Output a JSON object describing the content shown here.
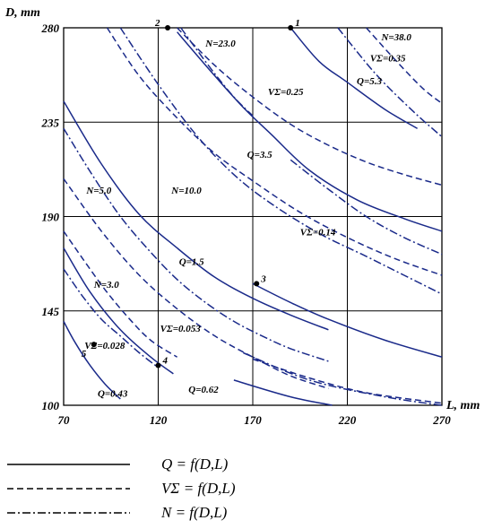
{
  "chart_data": {
    "type": "line",
    "xlabel": "L, mm",
    "ylabel": "D, mm",
    "xlim": [
      70,
      270
    ],
    "ylim": [
      100,
      280
    ],
    "xticks": [
      "70",
      "120",
      "170",
      "220",
      "270"
    ],
    "yticks": [
      "100",
      "145",
      "190",
      "235",
      "280"
    ],
    "grid": true,
    "curve_color": "#1a2a8a",
    "series": [
      {
        "name": "Q=0.43",
        "style": "solid",
        "points": [
          [
            70,
            140
          ],
          [
            76,
            130
          ],
          [
            84,
            119
          ],
          [
            92,
            110
          ],
          [
            100,
            103
          ]
        ]
      },
      {
        "name": "Q=0.62",
        "style": "solid",
        "points": [
          [
            70,
            175
          ],
          [
            84,
            154
          ],
          [
            100,
            136
          ],
          [
            116,
            123
          ],
          [
            128,
            115
          ]
        ]
      },
      {
        "name": "Q=1.5",
        "style": "solid",
        "points": [
          [
            70,
            245
          ],
          [
            90,
            215
          ],
          [
            110,
            191
          ],
          [
            130,
            175
          ],
          [
            150,
            161
          ],
          [
            170,
            151
          ],
          [
            190,
            143
          ],
          [
            210,
            136
          ]
        ]
      },
      {
        "name": "Q=1.5b",
        "style": "solid",
        "points": [
          [
            160,
            112
          ],
          [
            190,
            104
          ],
          [
            212,
            100
          ]
        ]
      },
      {
        "name": "Q=3.5",
        "style": "solid",
        "points": [
          [
            170,
            158
          ],
          [
            190,
            149
          ],
          [
            210,
            141
          ],
          [
            240,
            131
          ],
          [
            270,
            123
          ]
        ]
      },
      {
        "name": "Q=3.5b",
        "style": "solid",
        "points": [
          [
            130,
            278
          ],
          [
            150,
            257
          ],
          [
            165,
            242
          ],
          [
            180,
            229
          ],
          [
            200,
            212
          ],
          [
            225,
            198
          ],
          [
            250,
            189
          ],
          [
            270,
            183
          ]
        ]
      },
      {
        "name": "Q=5.3",
        "style": "solid",
        "points": [
          [
            190,
            280
          ],
          [
            205,
            264
          ],
          [
            220,
            254
          ],
          [
            240,
            241
          ],
          [
            257,
            232
          ]
        ]
      },
      {
        "name": "VΣ=0.028",
        "style": "dashed",
        "points": [
          [
            70,
            183
          ],
          [
            80,
            170
          ],
          [
            92,
            155
          ],
          [
            104,
            142
          ],
          [
            116,
            131
          ],
          [
            130,
            123
          ]
        ]
      },
      {
        "name": "VΣ=0.053",
        "style": "dashed",
        "points": [
          [
            70,
            208
          ],
          [
            90,
            183
          ],
          [
            110,
            162
          ],
          [
            130,
            146
          ],
          [
            150,
            133
          ],
          [
            170,
            123
          ],
          [
            190,
            114
          ],
          [
            210,
            108
          ]
        ]
      },
      {
        "name": "VΣ=0.14",
        "style": "dashed",
        "points": [
          [
            93,
            280
          ],
          [
            110,
            257
          ],
          [
            130,
            237
          ],
          [
            150,
            220
          ],
          [
            170,
            207
          ],
          [
            195,
            192
          ],
          [
            220,
            180
          ],
          [
            245,
            170
          ],
          [
            270,
            162
          ]
        ]
      },
      {
        "name": "VΣ=0.25",
        "style": "dashed",
        "points": [
          [
            130,
            280
          ],
          [
            150,
            262
          ],
          [
            170,
            247
          ],
          [
            190,
            234
          ],
          [
            210,
            224
          ],
          [
            230,
            216
          ],
          [
            250,
            210
          ],
          [
            270,
            205
          ]
        ]
      },
      {
        "name": "VΣ=0.35",
        "style": "dashed",
        "points": [
          [
            230,
            280
          ],
          [
            245,
            265
          ],
          [
            260,
            251
          ],
          [
            270,
            244
          ]
        ]
      },
      {
        "name": "VΣ=0.053b",
        "style": "dashed",
        "points": [
          [
            170,
            122
          ],
          [
            200,
            113
          ],
          [
            230,
            106
          ],
          [
            270,
            101
          ]
        ]
      },
      {
        "name": "N=3.0",
        "style": "dashdot",
        "points": [
          [
            70,
            165
          ],
          [
            80,
            152
          ],
          [
            90,
            141
          ],
          [
            100,
            133
          ],
          [
            110,
            125
          ],
          [
            120,
            118
          ]
        ]
      },
      {
        "name": "N=5.0",
        "style": "dashdot",
        "points": [
          [
            70,
            232
          ],
          [
            85,
            210
          ],
          [
            100,
            190
          ],
          [
            115,
            174
          ],
          [
            130,
            160
          ],
          [
            145,
            149
          ],
          [
            160,
            140
          ],
          [
            175,
            133
          ],
          [
            190,
            127
          ],
          [
            210,
            121
          ]
        ]
      },
      {
        "name": "N=10.0",
        "style": "dashdot",
        "points": [
          [
            100,
            280
          ],
          [
            120,
            253
          ],
          [
            140,
            229
          ],
          [
            160,
            210
          ],
          [
            180,
            196
          ],
          [
            205,
            182
          ],
          [
            230,
            171
          ],
          [
            250,
            162
          ],
          [
            270,
            153
          ]
        ]
      },
      {
        "name": "N=23.0",
        "style": "dashdot",
        "points": [
          [
            132,
            280
          ],
          [
            140,
            270
          ],
          [
            150,
            258
          ],
          [
            160,
            247
          ],
          [
            170,
            238
          ]
        ]
      },
      {
        "name": "N=23.0b",
        "style": "dashdot",
        "points": [
          [
            190,
            217
          ],
          [
            210,
            203
          ],
          [
            230,
            190
          ],
          [
            250,
            180
          ],
          [
            270,
            172
          ]
        ]
      },
      {
        "name": "N=38.0",
        "style": "dashdot",
        "points": [
          [
            215,
            280
          ],
          [
            235,
            258
          ],
          [
            255,
            240
          ],
          [
            270,
            228
          ]
        ]
      },
      {
        "name": "N=3.0b",
        "style": "dashdot",
        "points": [
          [
            165,
            125
          ],
          [
            200,
            112
          ],
          [
            240,
            104
          ],
          [
            270,
            100
          ]
        ]
      }
    ],
    "points": [
      {
        "label": "1",
        "x": 190,
        "y": 280
      },
      {
        "label": "2",
        "x": 125,
        "y": 280
      },
      {
        "label": "3",
        "x": 172,
        "y": 158
      },
      {
        "label": "4",
        "x": 120,
        "y": 119
      },
      {
        "label": "5",
        "x": 86,
        "y": 129
      }
    ],
    "annotations": [
      {
        "text": "N=38.0",
        "x": 238,
        "y": 274
      },
      {
        "text": "N=23.0",
        "x": 145,
        "y": 271
      },
      {
        "text": "VΣ=0.35",
        "x": 232,
        "y": 264
      },
      {
        "text": "Q=5.3",
        "x": 225,
        "y": 253
      },
      {
        "text": "VΣ=0.25",
        "x": 178,
        "y": 248
      },
      {
        "text": "Q=3.5",
        "x": 167,
        "y": 218
      },
      {
        "text": "N=5.0",
        "x": 82,
        "y": 201
      },
      {
        "text": "N=10.0",
        "x": 127,
        "y": 201
      },
      {
        "text": "VΣ=0.14",
        "x": 195,
        "y": 181
      },
      {
        "text": "Q=1.5",
        "x": 131,
        "y": 167
      },
      {
        "text": "N=3.0",
        "x": 86,
        "y": 156
      },
      {
        "text": "VΣ=0.053",
        "x": 121,
        "y": 135
      },
      {
        "text": "VΣ=0.028",
        "x": 81,
        "y": 127
      },
      {
        "text": "Q=0.62",
        "x": 136,
        "y": 106
      },
      {
        "text": "Q=0.43",
        "x": 88,
        "y": 104
      }
    ]
  },
  "legend": [
    {
      "style": "solid",
      "label": "Q = f(D,L)"
    },
    {
      "style": "dashed",
      "label": "VΣ = f(D,L)"
    },
    {
      "style": "dashdot",
      "label": "N = f(D,L)"
    }
  ]
}
